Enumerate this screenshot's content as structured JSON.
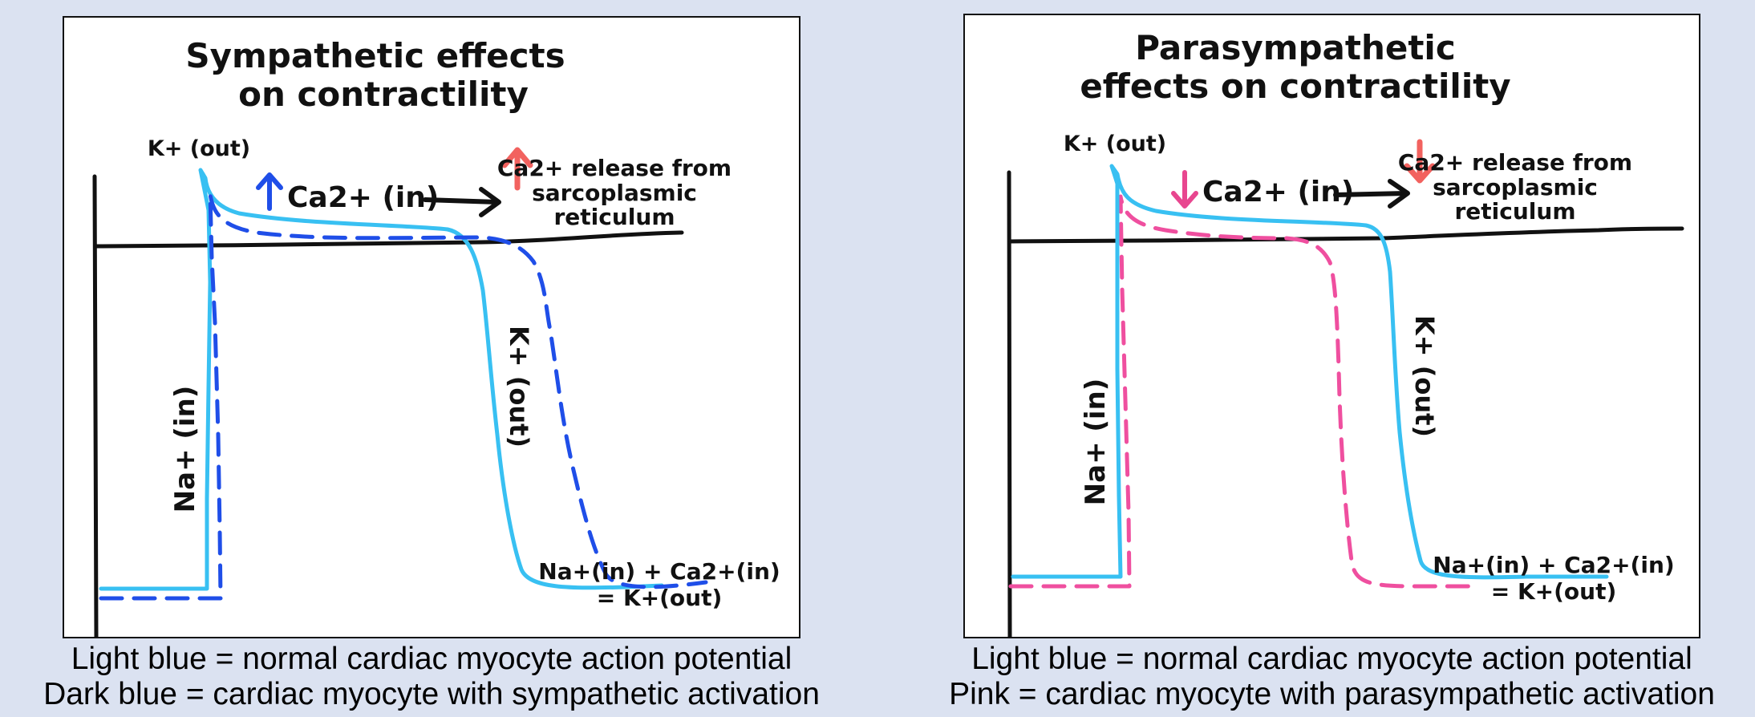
{
  "colors": {
    "background": "#dbe2f1",
    "normal_ap": "#38c0f2",
    "sympathetic_ap": "#1f4ee8",
    "parasympathetic_ap": "#ef4f9f",
    "up_arrow_ca": "#1f4ee8",
    "down_arrow_ca": "#e8468f",
    "release_arrow": "#f2625f"
  },
  "left": {
    "title_line1": "Sympathetic effects",
    "title_line2": "on  contractility",
    "label_k_out_top": "K+ (out)",
    "label_ca_in": "Ca2+ (in)",
    "label_release_1": "Ca2+ release from",
    "label_release_2": "sarcoplasmic",
    "label_release_3": "reticulum",
    "label_na_in": "Na+ (in)",
    "label_k_out_repol": "K+ (out)",
    "label_pump_1": "Na+(in) + Ca2+(in)",
    "label_pump_2": "= K+(out)",
    "caption_line1": "Light blue = normal cardiac myocyte action potential",
    "caption_line2": "Dark blue = cardiac myocyte with sympathetic activation",
    "ca_arrow_direction": "up",
    "release_arrow_direction": "up"
  },
  "right": {
    "title_line1": "Parasympathetic",
    "title_line2": "effects on  contractility",
    "label_k_out_top": "K+ (out)",
    "label_ca_in": "Ca2+ (in)",
    "label_release_1": "Ca2+ release from",
    "label_release_2": "sarcoplasmic",
    "label_release_3": "reticulum",
    "label_na_in": "Na+ (in)",
    "label_k_out_repol": "K+ (out)",
    "label_pump_1": "Na+(in) + Ca2+(in)",
    "label_pump_2": "= K+(out)",
    "caption_line1": "Light blue = normal cardiac myocyte action potential",
    "caption_line2": "Pink = cardiac myocyte with parasympathetic activation",
    "ca_arrow_direction": "down",
    "release_arrow_direction": "down"
  }
}
